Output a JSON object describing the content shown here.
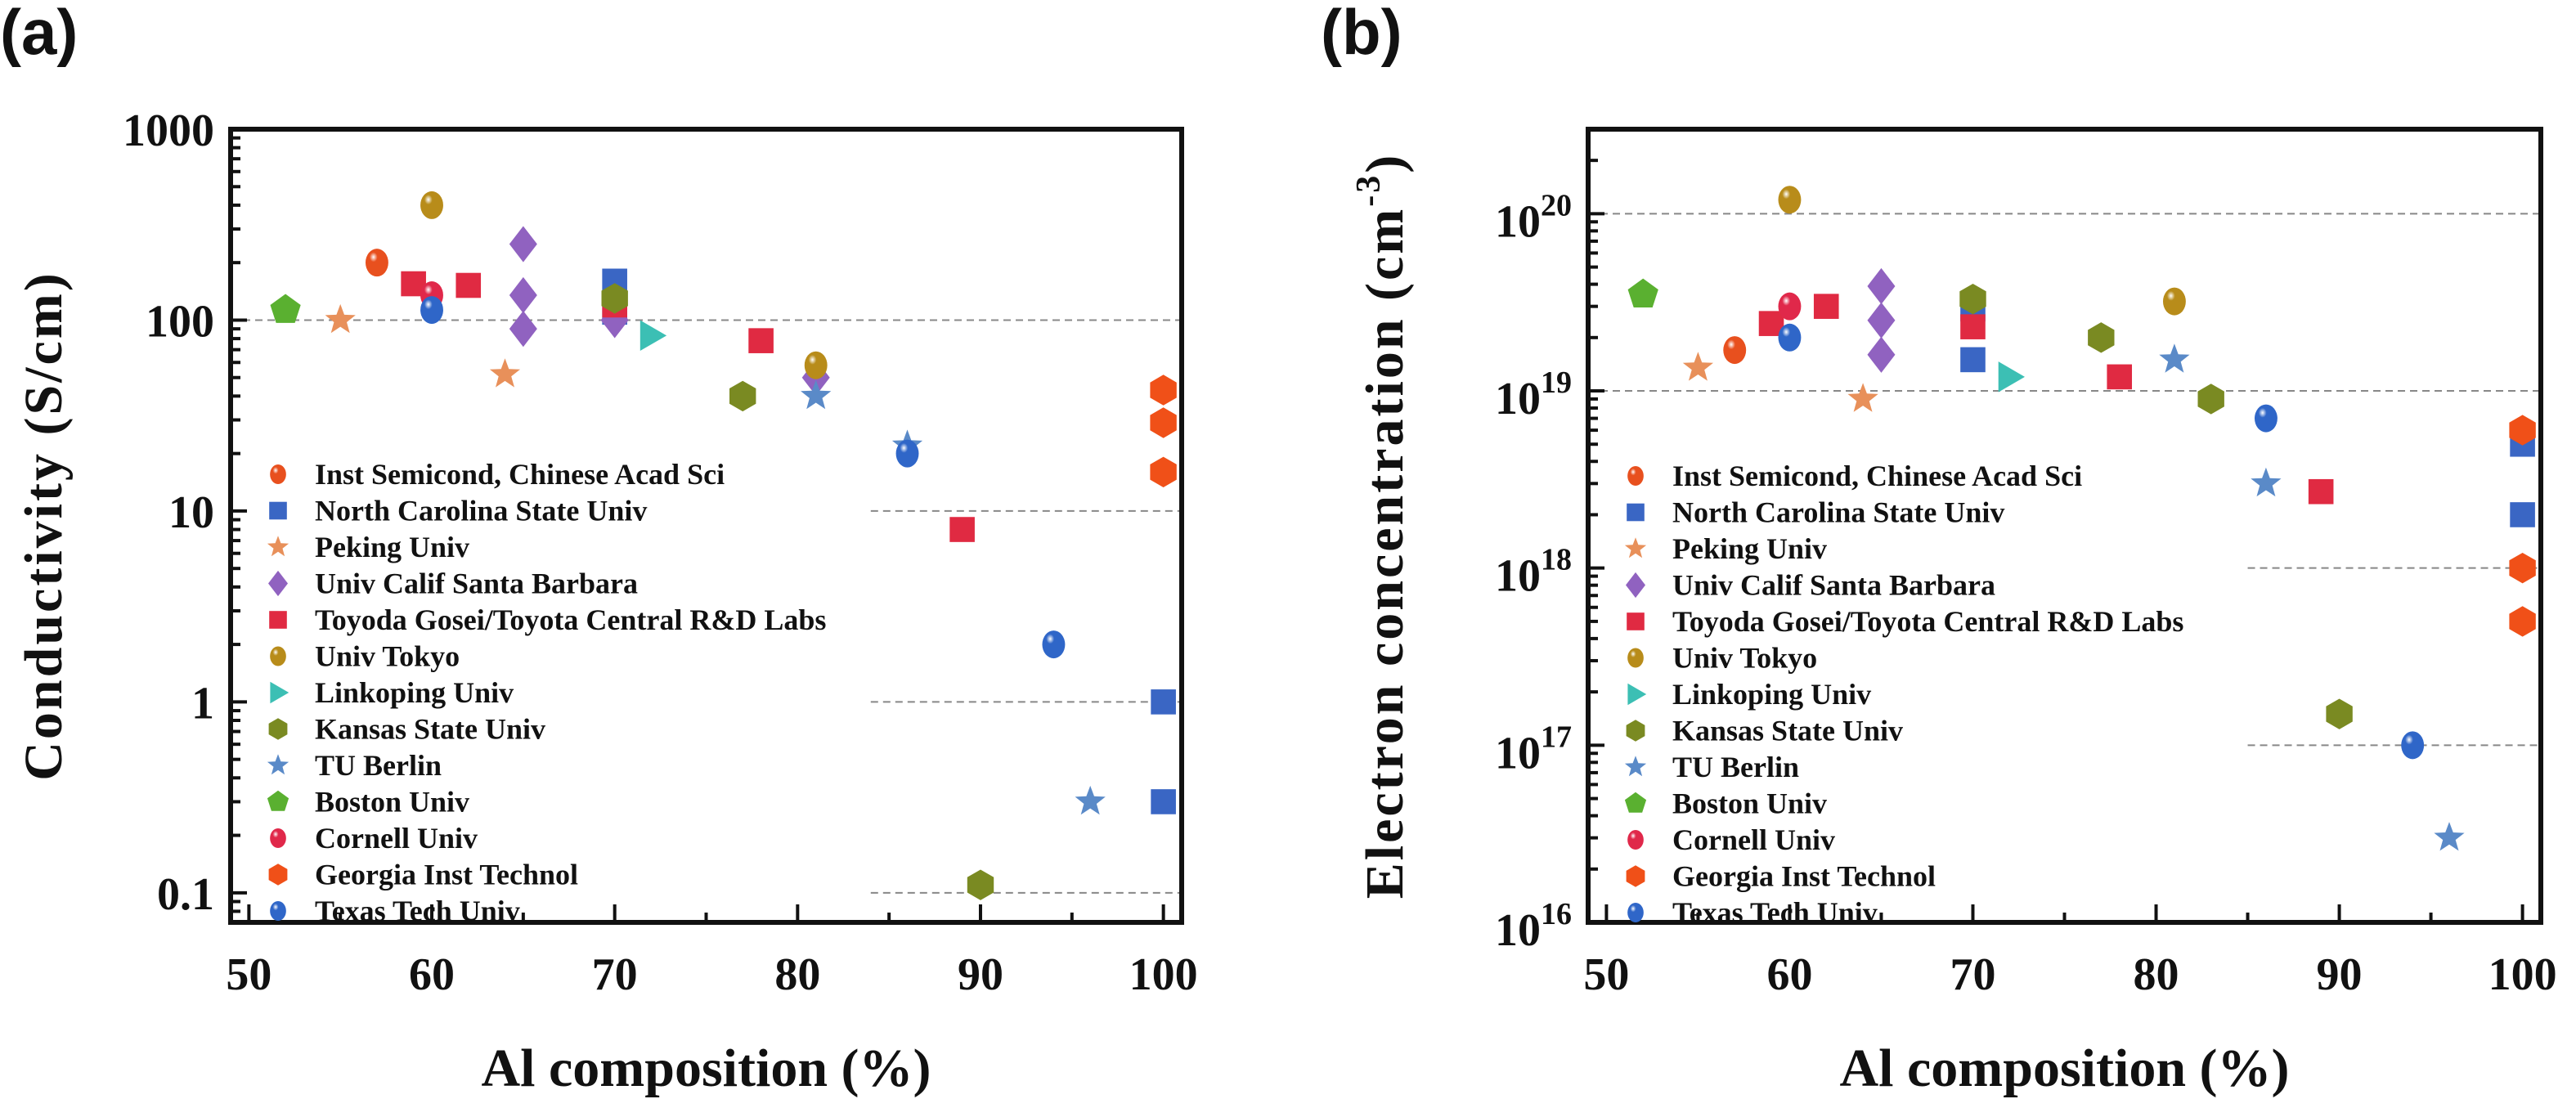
{
  "panels": [
    {
      "label": "(a)"
    },
    {
      "label": "(b)"
    }
  ],
  "legend": [
    {
      "name": "Inst Semicond, Chinese Acad Sci",
      "marker": "ball",
      "color": "#e8501e"
    },
    {
      "name": "North Carolina State Univ",
      "marker": "square",
      "color": "#3a66c4"
    },
    {
      "name": "Peking Univ",
      "marker": "star",
      "color": "#e8905a"
    },
    {
      "name": "Univ Calif Santa Barbara",
      "marker": "diamond",
      "color": "#9062c0"
    },
    {
      "name": "Toyoda Gosei/Toyota Central R&D Labs",
      "marker": "square",
      "color": "#e02a42"
    },
    {
      "name": "Univ Tokyo",
      "marker": "ball",
      "color": "#b88c1a"
    },
    {
      "name": "Linkoping Univ",
      "marker": "triangle",
      "color": "#3cbfb4"
    },
    {
      "name": "Kansas State Univ",
      "marker": "hexagon",
      "color": "#7a8a22"
    },
    {
      "name": "TU Berlin",
      "marker": "star",
      "color": "#5a8ac8"
    },
    {
      "name": "Boston Univ",
      "marker": "pentagon",
      "color": "#5ab030"
    },
    {
      "name": "Cornell Univ",
      "marker": "ball",
      "color": "#e0284a"
    },
    {
      "name": "Georgia Inst Technol",
      "marker": "hexagon",
      "color": "#f05018"
    },
    {
      "name": "Texas Tech Univ",
      "marker": "ball",
      "color": "#2f66c8"
    }
  ],
  "chart_data": [
    {
      "type": "scatter",
      "title": "(a)",
      "xlabel": "Al composition (%)",
      "ylabel": "Conductivity (S/cm)",
      "xlim": [
        49,
        101
      ],
      "ylim": [
        0.07,
        1000
      ],
      "yscale": "log",
      "xticks": [
        50,
        60,
        70,
        80,
        90,
        100
      ],
      "yticks": [
        {
          "value": 0.1,
          "label": "0.1"
        },
        {
          "value": 1,
          "label": "1"
        },
        {
          "value": 10,
          "label": "10"
        },
        {
          "value": 100,
          "label": "100"
        },
        {
          "value": 1000,
          "label": "1000"
        }
      ],
      "reference_lines": [
        {
          "y": 100,
          "x_from": 49
        },
        {
          "y": 10,
          "x_from": 84
        },
        {
          "y": 1,
          "x_from": 84
        },
        {
          "y": 0.1,
          "x_from": 84
        }
      ],
      "legend_position": "lower-left",
      "series": [
        {
          "name": "Inst Semicond, Chinese Acad Sci",
          "points": [
            [
              57,
              200
            ]
          ]
        },
        {
          "name": "North Carolina State Univ",
          "points": [
            [
              70,
              160
            ],
            [
              70,
              110
            ],
            [
              100,
              1
            ],
            [
              100,
              0.3
            ]
          ]
        },
        {
          "name": "Peking Univ",
          "points": [
            [
              55,
              100
            ],
            [
              64,
              52
            ]
          ]
        },
        {
          "name": "Univ Calif Santa Barbara",
          "points": [
            [
              65,
              250
            ],
            [
              65,
              135
            ],
            [
              65,
              90
            ],
            [
              70,
              100
            ],
            [
              81,
              50
            ]
          ]
        },
        {
          "name": "Toyoda Gosei/Toyota Central R&D Labs",
          "points": [
            [
              59,
              155
            ],
            [
              62,
              152
            ],
            [
              70,
              120
            ],
            [
              78,
              78
            ],
            [
              89,
              8
            ]
          ]
        },
        {
          "name": "Univ Tokyo",
          "points": [
            [
              60,
              400
            ],
            [
              81,
              58
            ]
          ]
        },
        {
          "name": "Linkoping Univ",
          "points": [
            [
              72,
              83
            ]
          ]
        },
        {
          "name": "Kansas State Univ",
          "points": [
            [
              70,
              130
            ],
            [
              77,
              40
            ],
            [
              90,
              0.11
            ]
          ]
        },
        {
          "name": "TU Berlin",
          "points": [
            [
              81,
              40
            ],
            [
              86,
              22
            ],
            [
              96,
              0.3
            ]
          ]
        },
        {
          "name": "Boston Univ",
          "points": [
            [
              52,
              113
            ]
          ]
        },
        {
          "name": "Cornell Univ",
          "points": [
            [
              60,
              135
            ]
          ]
        },
        {
          "name": "Georgia Inst Technol",
          "points": [
            [
              100,
              43
            ],
            [
              100,
              29
            ],
            [
              100,
              16
            ]
          ]
        },
        {
          "name": "Texas Tech Univ",
          "points": [
            [
              60,
              113
            ],
            [
              86,
              20
            ],
            [
              94,
              2
            ]
          ]
        }
      ]
    },
    {
      "type": "scatter",
      "title": "(b)",
      "xlabel": "Al composition (%)",
      "ylabel": "Electron concentration (cm-3)",
      "ylabel_main": "Electron concentration (cm",
      "ylabel_sup": "-3",
      "ylabel_close": ")",
      "xlim": [
        49,
        101
      ],
      "ylim": [
        1e+16,
        3e+20
      ],
      "yscale": "log",
      "xticks": [
        50,
        60,
        70,
        80,
        90,
        100
      ],
      "yticks": [
        {
          "value": 1e+16,
          "base": "10",
          "exp": "16"
        },
        {
          "value": 1e+17,
          "base": "10",
          "exp": "17"
        },
        {
          "value": 1e+18,
          "base": "10",
          "exp": "18"
        },
        {
          "value": 1e+19,
          "base": "10",
          "exp": "19"
        },
        {
          "value": 1e+20,
          "base": "10",
          "exp": "20"
        }
      ],
      "reference_lines": [
        {
          "y": 1e+20,
          "x_from": 49
        },
        {
          "y": 1e+19,
          "x_from": 49
        },
        {
          "y": 1e+18,
          "x_from": 85
        },
        {
          "y": 1e+17,
          "x_from": 85
        }
      ],
      "legend_position": "lower-left",
      "series": [
        {
          "name": "Inst Semicond, Chinese Acad Sci",
          "points": [
            [
              57,
              1.7e+19
            ]
          ]
        },
        {
          "name": "North Carolina State Univ",
          "points": [
            [
              70,
              2.9e+19
            ],
            [
              70,
              1.5e+19
            ],
            [
              100,
              5e+18
            ],
            [
              100,
              2e+18
            ]
          ]
        },
        {
          "name": "Peking Univ",
          "points": [
            [
              55,
              1.35e+19
            ],
            [
              64,
              9e+18
            ]
          ]
        },
        {
          "name": "Univ Calif Santa Barbara",
          "points": [
            [
              65,
              3.9e+19
            ],
            [
              65,
              2.5e+19
            ],
            [
              65,
              1.6e+19
            ]
          ]
        },
        {
          "name": "Toyoda Gosei/Toyota Central R&D Labs",
          "points": [
            [
              59,
              2.4e+19
            ],
            [
              62,
              3e+19
            ],
            [
              70,
              2.3e+19
            ],
            [
              78,
              1.2e+19
            ],
            [
              89,
              2.7e+18
            ]
          ]
        },
        {
          "name": "Univ Tokyo",
          "points": [
            [
              60,
              1.2e+20
            ],
            [
              81,
              3.2e+19
            ]
          ]
        },
        {
          "name": "Linkoping Univ",
          "points": [
            [
              72,
              1.2e+19
            ]
          ]
        },
        {
          "name": "Kansas State Univ",
          "points": [
            [
              70,
              3.3e+19
            ],
            [
              77,
              2e+19
            ],
            [
              83,
              9e+18
            ],
            [
              90,
              1.5e+17
            ]
          ]
        },
        {
          "name": "TU Berlin",
          "points": [
            [
              81,
              1.5e+19
            ],
            [
              86,
              3e+18
            ],
            [
              96,
              3e+16
            ]
          ]
        },
        {
          "name": "Boston Univ",
          "points": [
            [
              52,
              3.5e+19
            ]
          ]
        },
        {
          "name": "Cornell Univ",
          "points": [
            [
              60,
              3e+19
            ]
          ]
        },
        {
          "name": "Georgia Inst Technol",
          "points": [
            [
              100,
              6e+18
            ],
            [
              100,
              1e+18
            ],
            [
              100,
              5e+17
            ]
          ]
        },
        {
          "name": "Texas Tech Univ",
          "points": [
            [
              60,
              2e+19
            ],
            [
              86,
              7e+18
            ],
            [
              94,
              1e+17
            ]
          ]
        }
      ]
    }
  ]
}
